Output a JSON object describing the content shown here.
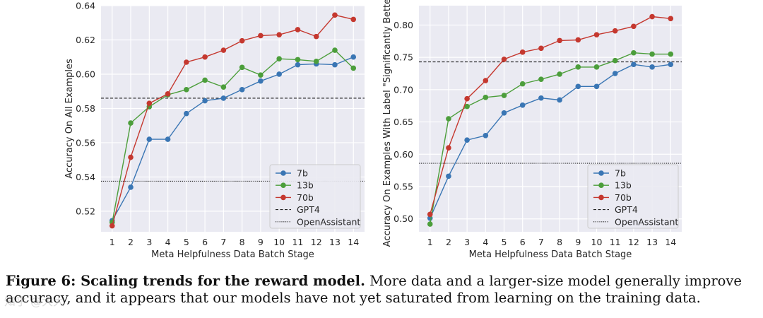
{
  "chart_data": [
    {
      "type": "line",
      "xlabel": "Meta Helpfulness Data Batch Stage",
      "ylabel": "Accuracy On All Examples",
      "x": [
        1,
        2,
        3,
        4,
        5,
        6,
        7,
        8,
        9,
        10,
        11,
        12,
        13,
        14
      ],
      "ylim": [
        0.508,
        0.64
      ],
      "yticks": [
        0.52,
        0.54,
        0.56,
        0.58,
        0.6,
        0.62,
        0.64
      ],
      "ytick_labels": [
        "0.52",
        "0.54",
        "0.56",
        "0.58",
        "0.60",
        "0.62",
        "0.64"
      ],
      "series": [
        {
          "name": "7b",
          "color": "#3a76b4",
          "values": [
            0.5145,
            0.534,
            0.562,
            0.562,
            0.577,
            0.5845,
            0.586,
            0.591,
            0.596,
            0.6,
            0.6055,
            0.606,
            0.6055,
            0.61
          ]
        },
        {
          "name": "13b",
          "color": "#4c9e3b",
          "values": [
            0.5135,
            0.5715,
            0.581,
            0.588,
            0.591,
            0.5965,
            0.5925,
            0.604,
            0.5995,
            0.609,
            0.6085,
            0.6075,
            0.614,
            0.6035
          ]
        },
        {
          "name": "70b",
          "color": "#c5382f",
          "values": [
            0.5115,
            0.5515,
            0.583,
            0.5885,
            0.607,
            0.61,
            0.614,
            0.6195,
            0.6225,
            0.623,
            0.626,
            0.622,
            0.6345,
            0.632
          ]
        }
      ],
      "references": [
        {
          "name": "GPT4",
          "style": "dashed",
          "value": 0.586
        },
        {
          "name": "OpenAssistant",
          "style": "dotted",
          "value": 0.5375
        }
      ],
      "legend": "bottom-right",
      "grid": true
    },
    {
      "type": "line",
      "xlabel": "Meta Helpfulness Data Batch Stage",
      "ylabel": "Accuracy On Examples With Label \"Significantly Better\"",
      "x": [
        1,
        2,
        3,
        4,
        5,
        6,
        7,
        8,
        9,
        10,
        11,
        12,
        13,
        14
      ],
      "ylim": [
        0.48,
        0.83
      ],
      "yticks": [
        0.5,
        0.55,
        0.6,
        0.65,
        0.7,
        0.75,
        0.8
      ],
      "ytick_labels": [
        "0.50",
        "0.55",
        "0.60",
        "0.65",
        "0.70",
        "0.75",
        "0.80"
      ],
      "series": [
        {
          "name": "7b",
          "color": "#3a76b4",
          "values": [
            0.501,
            0.566,
            0.622,
            0.629,
            0.664,
            0.676,
            0.687,
            0.684,
            0.705,
            0.705,
            0.725,
            0.739,
            0.735,
            0.739
          ]
        },
        {
          "name": "13b",
          "color": "#4c9e3b",
          "values": [
            0.492,
            0.655,
            0.674,
            0.688,
            0.691,
            0.709,
            0.716,
            0.724,
            0.735,
            0.735,
            0.745,
            0.757,
            0.755,
            0.755
          ]
        },
        {
          "name": "70b",
          "color": "#c5382f",
          "values": [
            0.507,
            0.61,
            0.686,
            0.714,
            0.747,
            0.758,
            0.764,
            0.776,
            0.777,
            0.785,
            0.791,
            0.798,
            0.813,
            0.81
          ]
        }
      ],
      "references": [
        {
          "name": "GPT4",
          "style": "dashed",
          "value": 0.743
        },
        {
          "name": "OpenAssistant",
          "style": "dotted",
          "value": 0.586
        }
      ],
      "legend": "bottom-right",
      "grid": true
    }
  ],
  "caption": {
    "bold": "Figure 6: Scaling trends for the reward model.",
    "text": " More data and a larger-size model generally improve accuracy, and it appears that our models have not yet saturated from learning on the training data."
  },
  "watermark": "知乎 @大大"
}
